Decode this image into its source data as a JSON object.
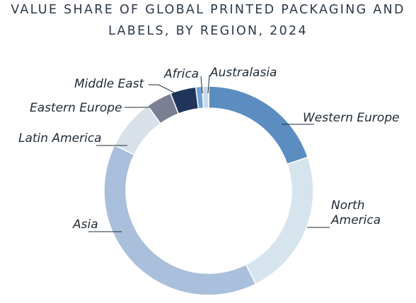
{
  "chart_data": {
    "type": "pie",
    "variant": "donut",
    "title_lines": [
      "VALUE SHARE OF GLOBAL PRINTED PACKAGING AND",
      "LABELS, BY REGION, 2024"
    ],
    "slices": [
      {
        "label": "Western Europe",
        "label_lines": [
          "Western Europe"
        ],
        "value": 20,
        "color": "#5b8dc0"
      },
      {
        "label": "North America",
        "label_lines": [
          "North",
          "America"
        ],
        "value": 23,
        "color": "#d6e4ee"
      },
      {
        "label": "Asia",
        "label_lines": [
          "Asia"
        ],
        "value": 40,
        "color": "#a9bfdb"
      },
      {
        "label": "Latin America",
        "label_lines": [
          "Latin America"
        ],
        "value": 8,
        "color": "#d8e0ea"
      },
      {
        "label": "Eastern Europe",
        "label_lines": [
          "Eastern Europe"
        ],
        "value": 4,
        "color": "#7b7f93"
      },
      {
        "label": "Middle East",
        "label_lines": [
          "Middle East"
        ],
        "value": 4,
        "color": "#1f3559"
      },
      {
        "label": "Africa",
        "label_lines": [
          "Africa"
        ],
        "value": 1,
        "color": "#6fa3d2"
      },
      {
        "label": "Australasia",
        "label_lines": [
          "Australasia"
        ],
        "value": 1,
        "color": "#c7d9ea"
      }
    ],
    "legend": "none"
  }
}
